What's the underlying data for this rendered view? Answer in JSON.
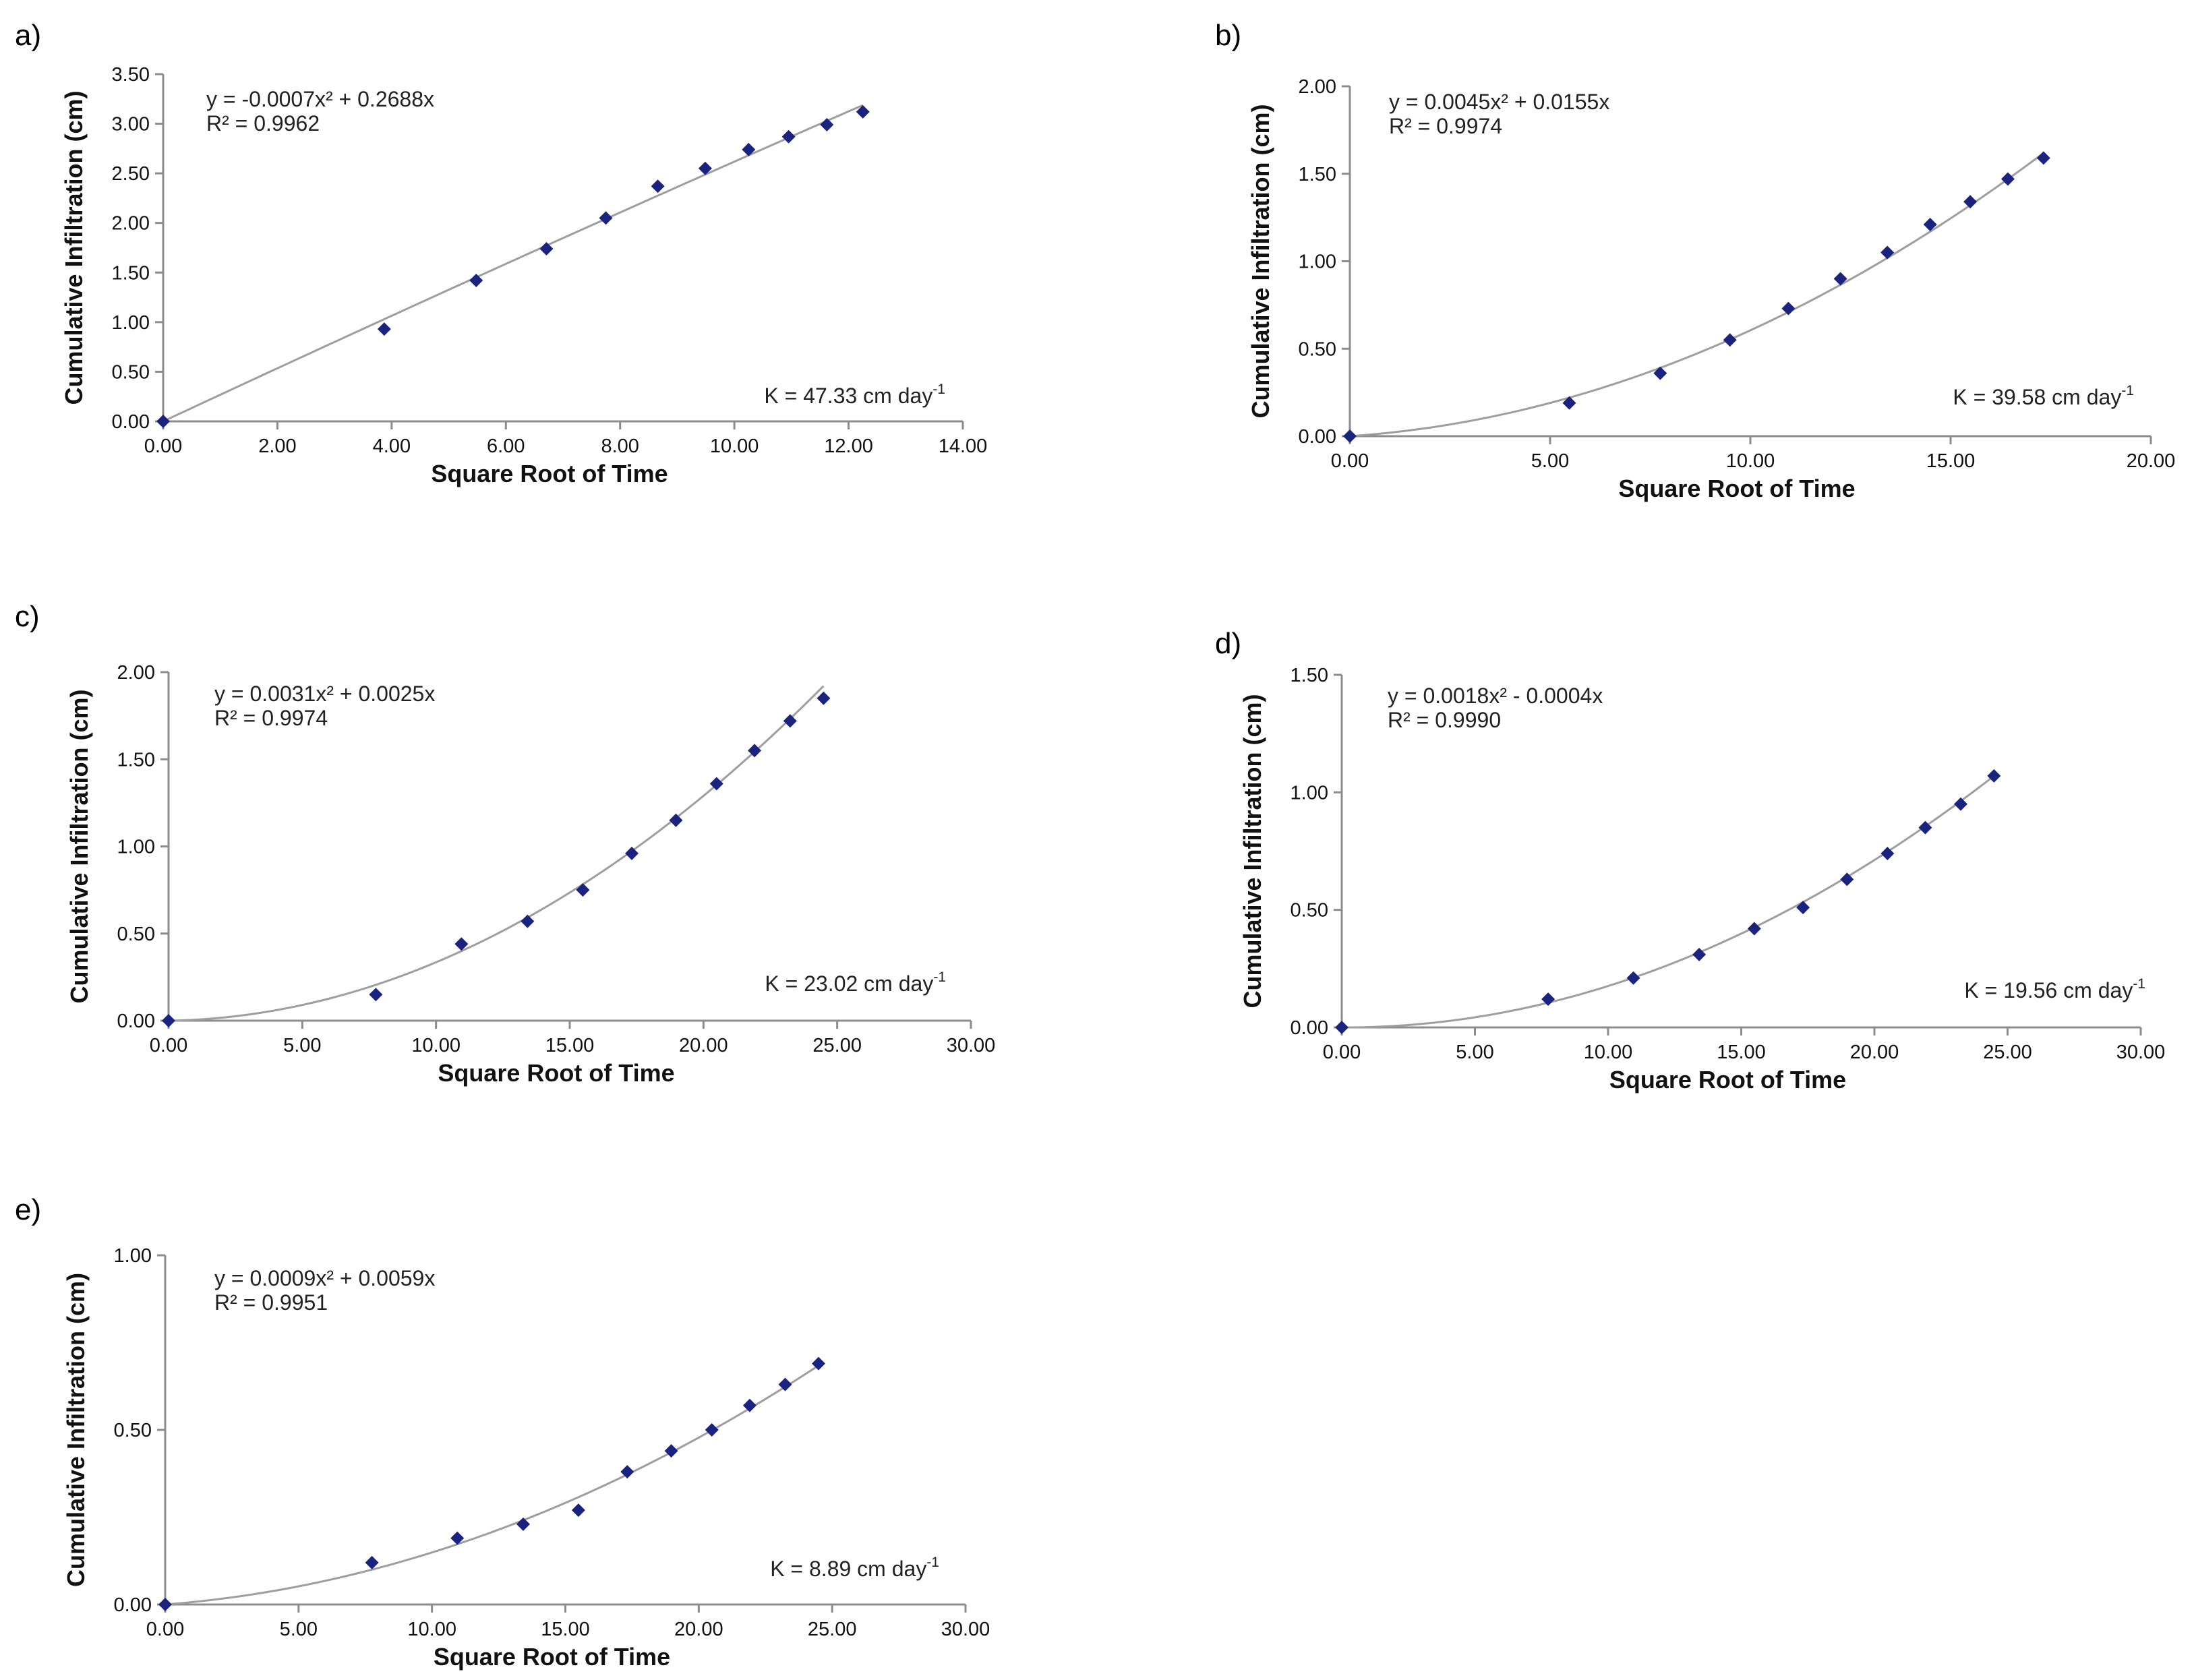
{
  "chart_data": [
    {
      "type": "scatter",
      "panel_label": "a)",
      "xlabel": "Square Root of Time",
      "ylabel": "Cumulative Infiltration (cm)",
      "xlim": [
        0,
        14
      ],
      "ylim": [
        0,
        3.5
      ],
      "xticks": [
        "0.00",
        "2.00",
        "4.00",
        "6.00",
        "8.00",
        "10.00",
        "12.00",
        "14.00"
      ],
      "yticks": [
        "0.00",
        "0.50",
        "1.00",
        "1.50",
        "2.00",
        "2.50",
        "3.00",
        "3.50"
      ],
      "x": [
        0,
        3.87,
        5.48,
        6.71,
        7.75,
        8.66,
        9.49,
        10.25,
        10.95,
        11.62,
        12.25
      ],
      "y": [
        0,
        0.93,
        1.42,
        1.74,
        2.05,
        2.37,
        2.55,
        2.74,
        2.87,
        2.99,
        3.12
      ],
      "fit": {
        "a": -0.0007,
        "b": 0.2688
      },
      "equation": "y = -0.0007x² + 0.2688x",
      "r2": "R² = 0.9962",
      "k_text": "K = 47.33 cm day",
      "k_exp": "-1"
    },
    {
      "type": "scatter",
      "panel_label": "b)",
      "xlabel": "Square Root of Time",
      "ylabel": "Cumulative Infiltration (cm)",
      "xlim": [
        0,
        20
      ],
      "ylim": [
        0,
        2
      ],
      "xticks": [
        "0.00",
        "5.00",
        "10.00",
        "15.00",
        "20.00"
      ],
      "yticks": [
        "0.00",
        "0.50",
        "1.00",
        "1.50",
        "2.00"
      ],
      "x": [
        0,
        5.48,
        7.75,
        9.49,
        10.95,
        12.25,
        13.42,
        14.49,
        15.49,
        16.43,
        17.32
      ],
      "y": [
        0,
        0.19,
        0.36,
        0.55,
        0.73,
        0.9,
        1.05,
        1.21,
        1.34,
        1.47,
        1.59
      ],
      "fit": {
        "a": 0.0045,
        "b": 0.0155
      },
      "equation": "y = 0.0045x² + 0.0155x",
      "r2": "R² = 0.9974",
      "k_text": "K = 39.58 cm day",
      "k_exp": "-1"
    },
    {
      "type": "scatter",
      "panel_label": "c)",
      "xlabel": "Square Root of Time",
      "ylabel": "Cumulative Infiltration (cm)",
      "xlim": [
        0,
        30
      ],
      "ylim": [
        0,
        2
      ],
      "xticks": [
        "0.00",
        "5.00",
        "10.00",
        "15.00",
        "20.00",
        "25.00",
        "30.00"
      ],
      "yticks": [
        "0.00",
        "0.50",
        "1.00",
        "1.50",
        "2.00"
      ],
      "x": [
        0,
        7.75,
        10.95,
        13.42,
        15.49,
        17.32,
        18.97,
        20.49,
        21.91,
        23.24,
        24.49
      ],
      "y": [
        0,
        0.15,
        0.44,
        0.57,
        0.75,
        0.96,
        1.15,
        1.36,
        1.55,
        1.72,
        1.85
      ],
      "fit": {
        "a": 0.0031,
        "b": 0.0025
      },
      "equation": "y = 0.0031x² + 0.0025x",
      "r2": "R² = 0.9974",
      "k_text": "K = 23.02 cm day",
      "k_exp": "-1"
    },
    {
      "type": "scatter",
      "panel_label": "d)",
      "xlabel": "Square Root of Time",
      "ylabel": "Cumulative Infiltration (cm)",
      "xlim": [
        0,
        30
      ],
      "ylim": [
        0,
        1.5
      ],
      "xticks": [
        "0.00",
        "5.00",
        "10.00",
        "15.00",
        "20.00",
        "25.00",
        "30.00"
      ],
      "yticks": [
        "0.00",
        "0.50",
        "1.00",
        "1.50"
      ],
      "x": [
        0,
        7.75,
        10.95,
        13.42,
        15.49,
        17.32,
        18.97,
        20.49,
        21.91,
        23.24,
        24.49
      ],
      "y": [
        0,
        0.12,
        0.21,
        0.31,
        0.42,
        0.51,
        0.63,
        0.74,
        0.85,
        0.95,
        1.07
      ],
      "fit": {
        "a": 0.0018,
        "b": -0.0004
      },
      "equation": "y = 0.0018x² - 0.0004x",
      "r2": "R² = 0.9990",
      "k_text": "K = 19.56 cm day",
      "k_exp": "-1"
    },
    {
      "type": "scatter",
      "panel_label": "e)",
      "xlabel": "Square Root of Time",
      "ylabel": "Cumulative Infiltration (cm)",
      "xlim": [
        0,
        30
      ],
      "ylim": [
        0,
        1
      ],
      "xticks": [
        "0.00",
        "5.00",
        "10.00",
        "15.00",
        "20.00",
        "25.00",
        "30.00"
      ],
      "yticks": [
        "0.00",
        "0.50",
        "1.00"
      ],
      "x": [
        0,
        7.75,
        10.95,
        13.42,
        15.49,
        17.32,
        18.97,
        20.49,
        21.91,
        23.24,
        24.49
      ],
      "y": [
        0,
        0.12,
        0.19,
        0.23,
        0.27,
        0.38,
        0.44,
        0.5,
        0.57,
        0.63,
        0.69
      ],
      "fit": {
        "a": 0.0009,
        "b": 0.0059
      },
      "equation": "y = 0.0009x² + 0.0059x",
      "r2": "R² = 0.9951",
      "k_text": "K = 8.89 cm day",
      "k_exp": "-1"
    }
  ],
  "colors": {
    "marker": "#1a237e",
    "trendline": "#9e9e9e",
    "axis": "#8c8c8c"
  }
}
